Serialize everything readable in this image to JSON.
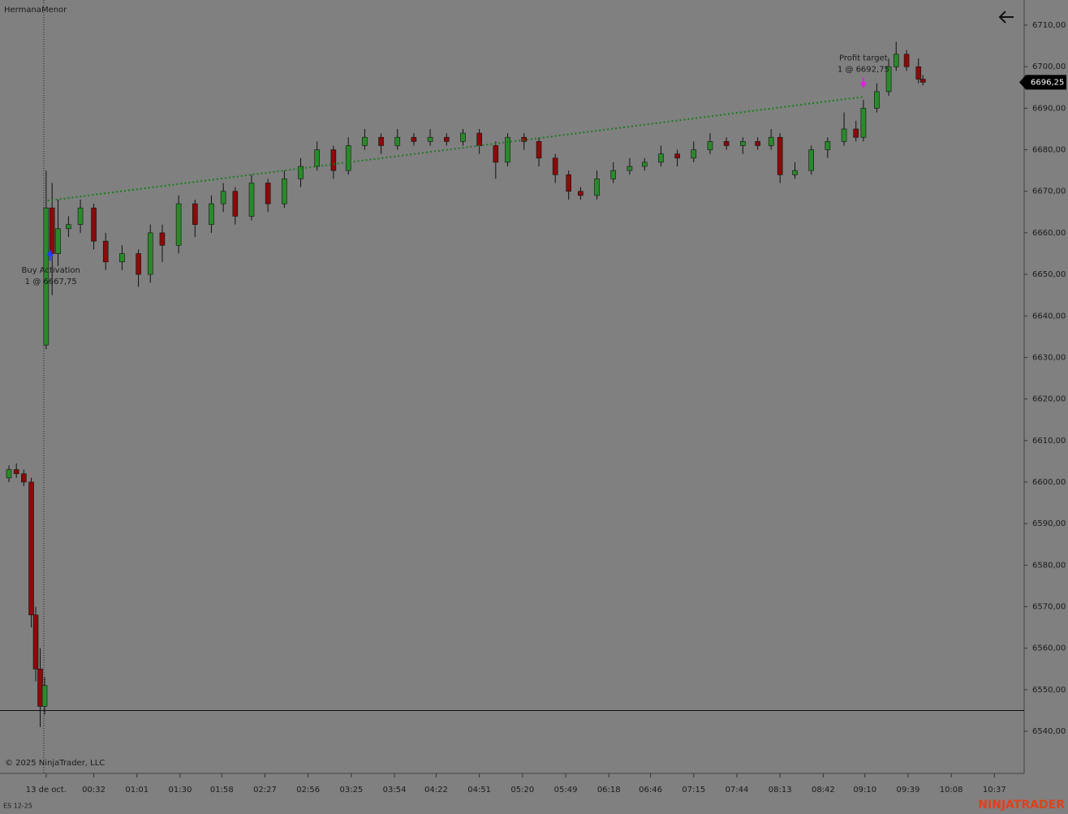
{
  "chart_data": {
    "type": "candlestick",
    "title": "HermanaMenor",
    "instrument": "ES 12-25",
    "copyright": "© 2025 NinjaTrader, LLC",
    "brand": "NINJATRADER",
    "up_color": "#2a8a2a",
    "down_color": "#8b0a0a",
    "xlim": [
      -31,
      657
    ],
    "ylim": [
      6529.85,
      6716.06
    ],
    "xticks": [
      {
        "value": 0,
        "label": "13 de oct."
      },
      {
        "value": 32,
        "label": "00:32"
      },
      {
        "value": 61,
        "label": "01:01"
      },
      {
        "value": 90,
        "label": "01:30"
      },
      {
        "value": 118,
        "label": "01:58"
      },
      {
        "value": 147,
        "label": "02:27"
      },
      {
        "value": 176,
        "label": "02:56"
      },
      {
        "value": 205,
        "label": "03:25"
      },
      {
        "value": 234,
        "label": "03:54"
      },
      {
        "value": 262,
        "label": "04:22"
      },
      {
        "value": 291,
        "label": "04:51"
      },
      {
        "value": 320,
        "label": "05:20"
      },
      {
        "value": 349,
        "label": "05:49"
      },
      {
        "value": 378,
        "label": "06:18"
      },
      {
        "value": 406,
        "label": "06:46"
      },
      {
        "value": 435,
        "label": "07:15"
      },
      {
        "value": 464,
        "label": "07:44"
      },
      {
        "value": 493,
        "label": "08:13"
      },
      {
        "value": 522,
        "label": "08:42"
      },
      {
        "value": 550,
        "label": "09:10"
      },
      {
        "value": 579,
        "label": "09:39"
      },
      {
        "value": 608,
        "label": "10:08"
      },
      {
        "value": 637,
        "label": "10:37"
      }
    ],
    "yticks": [
      {
        "value": 6540,
        "label": "6540,00"
      },
      {
        "value": 6550,
        "label": "6550,00"
      },
      {
        "value": 6560,
        "label": "6560,00"
      },
      {
        "value": 6570,
        "label": "6570,00"
      },
      {
        "value": 6580,
        "label": "6580,00"
      },
      {
        "value": 6590,
        "label": "6590,00"
      },
      {
        "value": 6600,
        "label": "6600,00"
      },
      {
        "value": 6610,
        "label": "6610,00"
      },
      {
        "value": 6620,
        "label": "6620,00"
      },
      {
        "value": 6630,
        "label": "6630,00"
      },
      {
        "value": 6640,
        "label": "6640,00"
      },
      {
        "value": 6650,
        "label": "6650,00"
      },
      {
        "value": 6660,
        "label": "6660,00"
      },
      {
        "value": 6670,
        "label": "6670,00"
      },
      {
        "value": 6680,
        "label": "6680,00"
      },
      {
        "value": 6690,
        "label": "6690,00"
      },
      {
        "value": 6700,
        "label": "6700,00"
      },
      {
        "value": 6710,
        "label": "6710,00"
      }
    ],
    "x": [
      -25,
      -20,
      -15,
      -10,
      -7,
      -4,
      -1,
      0,
      4,
      8,
      15,
      23,
      32,
      40,
      51,
      62,
      70,
      78,
      89,
      100,
      111,
      119,
      127,
      138,
      149,
      160,
      171,
      182,
      193,
      203,
      214,
      225,
      236,
      247,
      258,
      269,
      280,
      291,
      302,
      310,
      321,
      331,
      342,
      351,
      359,
      370,
      381,
      392,
      402,
      413,
      424,
      435,
      446,
      457,
      468,
      478,
      487,
      493,
      503,
      514,
      525,
      536,
      544,
      549,
      558,
      566,
      571,
      578,
      586,
      589
    ],
    "open": [
      6601,
      6603,
      6602,
      6600,
      6568,
      6555,
      6546,
      6633,
      6666,
      6655,
      6661,
      6662,
      6666,
      6658,
      6653,
      6655,
      6650,
      6660,
      6657,
      6667,
      6662,
      6667,
      6670,
      6664,
      6672,
      6667,
      6673,
      6676,
      6680,
      6675,
      6681,
      6683,
      6681,
      6683,
      6682,
      6683,
      6682,
      6684,
      6681,
      6677,
      6683,
      6682,
      6678,
      6674,
      6670,
      6669,
      6673,
      6675,
      6676,
      6677,
      6679,
      6678,
      6680,
      6682,
      6681,
      6682,
      6681,
      6683,
      6674,
      6675,
      6680,
      6682,
      6685,
      6683,
      6690,
      6694,
      6700,
      6703,
      6700,
      6697
    ],
    "high": [
      6604,
      6604.5,
      6603,
      6601,
      6570,
      6560,
      6553,
      6675,
      6672,
      6668,
      6664,
      6668,
      6667,
      6660,
      6657,
      6656,
      6662,
      6662,
      6669,
      6668,
      6669,
      6672,
      6671,
      6674,
      6673,
      6675,
      6678,
      6682,
      6681,
      6683,
      6685,
      6684,
      6685,
      6684,
      6685,
      6684,
      6685,
      6685,
      6682,
      6684,
      6684,
      6683,
      6679,
      6675,
      6671,
      6675,
      6677,
      6678,
      6678,
      6681,
      6680,
      6682,
      6684,
      6683,
      6683,
      6683,
      6685,
      6684,
      6677,
      6681,
      6683,
      6689,
      6687,
      6692,
      6696,
      6702,
      6706,
      6704,
      6702,
      6698
    ],
    "low": [
      6600,
      6601,
      6599,
      6565,
      6552,
      6541,
      6544,
      6632,
      6645,
      6652,
      6659,
      6660,
      6656,
      6651,
      6651,
      6647,
      6648,
      6653,
      6655,
      6659,
      6660,
      6665,
      6662,
      6663,
      6665,
      6666,
      6671,
      6675,
      6673,
      6674,
      6680,
      6679,
      6680,
      6681,
      6681,
      6681,
      6681,
      6679,
      6673,
      6676,
      6680,
      6676,
      6672,
      6668,
      6668,
      6668,
      6672,
      6674,
      6675,
      6676,
      6676,
      6677,
      6679,
      6680,
      6679,
      6680,
      6680,
      6672,
      6673,
      6674,
      6678,
      6681,
      6682,
      6682,
      6689,
      6693,
      6699,
      6699,
      6696,
      6695.5
    ],
    "close": [
      6603,
      6602,
      6600,
      6568,
      6555,
      6546,
      6551,
      6666,
      6655,
      6661,
      6662,
      6666,
      6658,
      6653,
      6655,
      6650,
      6660,
      6657,
      6667,
      6662,
      6667,
      6670,
      6664,
      6672,
      6667,
      6673,
      6676,
      6680,
      6675,
      6681,
      6683,
      6681,
      6683,
      6682,
      6683,
      6682,
      6684,
      6681,
      6677,
      6683,
      6682,
      6678,
      6674,
      6670,
      6669,
      6673,
      6675,
      6676,
      6677,
      6679,
      6678,
      6680,
      6682,
      6681,
      6682,
      6681,
      6683,
      6674,
      6675,
      6680,
      6682,
      6685,
      6683,
      6690,
      6694,
      6700,
      6703,
      6700,
      6697,
      6696.25
    ],
    "trade_line_color": "#1a7a1a",
    "trades": [
      {
        "label": "Buy Activation",
        "detail": "1 @ 6667,75",
        "x": 1,
        "price": 6667.75,
        "color": "#1f3cff"
      },
      {
        "label": "Profit target",
        "detail": "1 @ 6692,75",
        "x": 549,
        "price": 6692.75,
        "color": "#e020e0"
      }
    ],
    "hline": 6545,
    "last": {
      "value": 6696.25,
      "label": "6696,25"
    }
  }
}
